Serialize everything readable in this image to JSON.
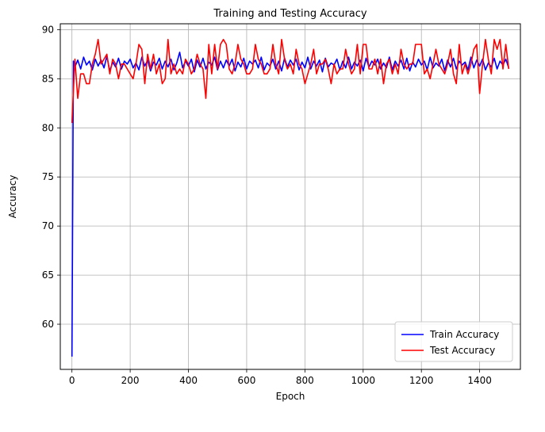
{
  "chart_data": {
    "type": "line",
    "title": "Training and Testing Accuracy",
    "xlabel": "Epoch",
    "ylabel": "Accuracy",
    "xlim": [
      -40,
      1540
    ],
    "ylim": [
      55.4,
      90.6
    ],
    "xticks": [
      0,
      200,
      400,
      600,
      800,
      1000,
      1200,
      1400
    ],
    "yticks": [
      60,
      65,
      70,
      75,
      80,
      85,
      90
    ],
    "grid": true,
    "legend_position": "lower-right",
    "series": [
      {
        "name": "Train Accuracy",
        "color": "#0000ff",
        "x": [
          0,
          5,
          10,
          20,
          30,
          40,
          50,
          60,
          70,
          80,
          90,
          100,
          110,
          120,
          130,
          140,
          150,
          160,
          170,
          180,
          190,
          200,
          210,
          220,
          230,
          240,
          250,
          260,
          270,
          280,
          290,
          300,
          310,
          320,
          330,
          340,
          350,
          360,
          370,
          380,
          390,
          400,
          410,
          420,
          430,
          440,
          450,
          460,
          470,
          480,
          490,
          500,
          510,
          520,
          530,
          540,
          550,
          560,
          570,
          580,
          590,
          600,
          610,
          620,
          630,
          640,
          650,
          660,
          670,
          680,
          690,
          700,
          710,
          720,
          730,
          740,
          750,
          760,
          770,
          780,
          790,
          800,
          810,
          820,
          830,
          840,
          850,
          860,
          870,
          880,
          890,
          900,
          910,
          920,
          930,
          940,
          950,
          960,
          970,
          980,
          990,
          1000,
          1010,
          1020,
          1030,
          1040,
          1050,
          1060,
          1070,
          1080,
          1090,
          1100,
          1110,
          1120,
          1130,
          1140,
          1150,
          1160,
          1170,
          1180,
          1190,
          1200,
          1210,
          1220,
          1230,
          1240,
          1250,
          1260,
          1270,
          1280,
          1290,
          1300,
          1310,
          1320,
          1330,
          1340,
          1350,
          1360,
          1370,
          1380,
          1390,
          1400,
          1410,
          1420,
          1430,
          1440,
          1450,
          1460,
          1470,
          1480,
          1490,
          1500
        ],
        "y": [
          56.7,
          86.8,
          86.2,
          86.9,
          86.0,
          87.2,
          86.4,
          86.8,
          85.9,
          87.0,
          86.3,
          86.9,
          86.1,
          87.3,
          85.8,
          86.7,
          86.2,
          87.1,
          86.0,
          86.8,
          86.5,
          87.0,
          86.1,
          86.6,
          85.9,
          87.2,
          86.3,
          86.9,
          85.8,
          86.7,
          86.4,
          87.1,
          86.0,
          86.8,
          86.2,
          87.0,
          85.9,
          86.6,
          87.7,
          86.1,
          86.8,
          86.3,
          87.0,
          85.7,
          86.9,
          86.2,
          87.1,
          86.0,
          86.7,
          86.4,
          87.2,
          85.9,
          86.8,
          86.1,
          86.9,
          86.3,
          87.0,
          85.8,
          86.7,
          86.2,
          87.1,
          86.0,
          86.8,
          86.5,
          86.9,
          86.1,
          87.2,
          85.9,
          86.6,
          86.3,
          87.0,
          86.0,
          86.8,
          85.8,
          87.1,
          86.2,
          86.9,
          86.4,
          87.0,
          85.9,
          86.7,
          86.1,
          87.2,
          86.0,
          86.8,
          86.3,
          86.9,
          85.7,
          87.1,
          86.2,
          86.6,
          86.4,
          87.0,
          85.9,
          86.8,
          86.1,
          87.2,
          86.0,
          86.7,
          86.3,
          86.9,
          85.8,
          87.1,
          86.2,
          86.8,
          86.4,
          87.0,
          86.0,
          86.6,
          86.1,
          87.2,
          85.9,
          86.8,
          86.3,
          86.9,
          86.0,
          87.1,
          85.8,
          86.7,
          86.2,
          87.0,
          86.4,
          86.8,
          85.9,
          87.2,
          86.1,
          86.6,
          86.3,
          87.0,
          85.8,
          86.9,
          86.2,
          87.1,
          86.0,
          86.8,
          86.4,
          86.7,
          85.9,
          87.2,
          86.1,
          86.9,
          86.3,
          87.0,
          85.9,
          86.6,
          86.2,
          87.1,
          86.0,
          86.8,
          86.4,
          87.0,
          86.1
        ]
      },
      {
        "name": "Test Accuracy",
        "color": "#ff0000",
        "x": [
          0,
          10,
          20,
          30,
          40,
          50,
          60,
          70,
          80,
          90,
          100,
          110,
          120,
          130,
          140,
          150,
          160,
          170,
          180,
          190,
          200,
          210,
          220,
          230,
          240,
          250,
          260,
          270,
          280,
          290,
          300,
          310,
          320,
          330,
          340,
          350,
          360,
          370,
          380,
          390,
          400,
          410,
          420,
          430,
          440,
          450,
          460,
          470,
          480,
          490,
          500,
          510,
          520,
          530,
          540,
          550,
          560,
          570,
          580,
          590,
          600,
          610,
          620,
          630,
          640,
          650,
          660,
          670,
          680,
          690,
          700,
          710,
          720,
          730,
          740,
          750,
          760,
          770,
          780,
          790,
          800,
          810,
          820,
          830,
          840,
          850,
          860,
          870,
          880,
          890,
          900,
          910,
          920,
          930,
          940,
          950,
          960,
          970,
          980,
          990,
          1000,
          1010,
          1020,
          1030,
          1040,
          1050,
          1060,
          1070,
          1080,
          1090,
          1100,
          1110,
          1120,
          1130,
          1140,
          1150,
          1160,
          1170,
          1180,
          1190,
          1200,
          1210,
          1220,
          1230,
          1240,
          1250,
          1260,
          1270,
          1280,
          1290,
          1300,
          1310,
          1320,
          1330,
          1340,
          1350,
          1360,
          1370,
          1380,
          1390,
          1400,
          1410,
          1420,
          1430,
          1440,
          1450,
          1460,
          1470,
          1480,
          1490,
          1500
        ],
        "y": [
          80.5,
          87.0,
          83.0,
          85.5,
          85.5,
          84.5,
          84.5,
          86.5,
          87.5,
          89.0,
          86.5,
          87.0,
          87.5,
          85.5,
          87.0,
          86.5,
          85.0,
          86.5,
          86.5,
          86.0,
          85.5,
          85.0,
          86.5,
          88.5,
          88.0,
          84.5,
          87.5,
          86.0,
          87.5,
          85.5,
          86.5,
          84.5,
          85.0,
          89.0,
          85.5,
          86.5,
          85.5,
          86.0,
          85.5,
          87.0,
          86.5,
          85.5,
          86.0,
          87.5,
          86.5,
          86.0,
          83.0,
          88.5,
          85.5,
          88.5,
          86.0,
          88.5,
          89.0,
          88.5,
          86.0,
          85.5,
          86.5,
          88.5,
          87.0,
          86.5,
          85.5,
          85.5,
          86.0,
          88.5,
          87.0,
          86.5,
          85.5,
          85.5,
          86.0,
          88.5,
          86.5,
          85.5,
          89.0,
          87.0,
          86.0,
          86.5,
          85.5,
          88.0,
          86.5,
          86.0,
          84.5,
          85.5,
          86.5,
          88.0,
          85.5,
          86.5,
          86.5,
          87.0,
          86.0,
          84.5,
          86.5,
          85.5,
          86.0,
          86.0,
          88.0,
          86.5,
          85.5,
          86.0,
          88.5,
          85.5,
          88.5,
          88.5,
          86.0,
          86.0,
          87.0,
          85.5,
          87.0,
          84.5,
          86.5,
          87.0,
          85.5,
          86.5,
          85.5,
          88.0,
          86.5,
          86.0,
          86.5,
          86.5,
          88.5,
          88.5,
          88.5,
          85.5,
          86.0,
          85.0,
          86.5,
          88.0,
          86.5,
          86.0,
          85.5,
          86.5,
          88.0,
          85.5,
          84.5,
          88.5,
          85.5,
          86.5,
          85.5,
          86.5,
          88.0,
          88.5,
          83.5,
          86.5,
          89.0,
          87.0,
          85.5,
          89.0,
          88.0,
          89.0,
          86.0,
          88.5,
          86.0
        ]
      }
    ]
  }
}
